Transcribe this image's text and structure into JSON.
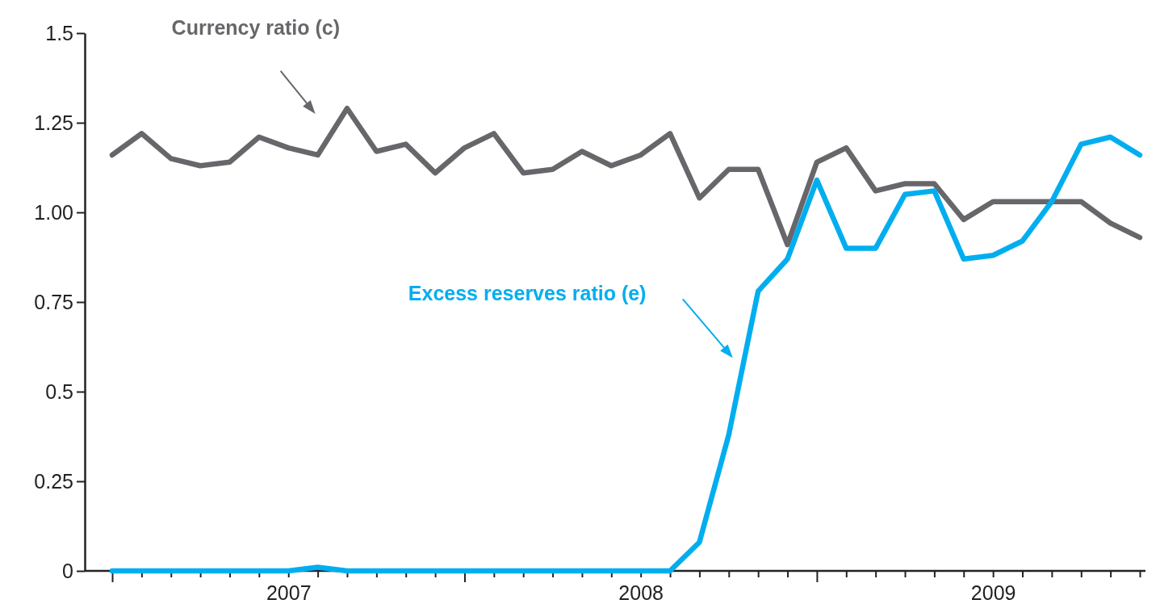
{
  "chart_data": {
    "type": "line",
    "categories": [
      null,
      null,
      null,
      null,
      null,
      null,
      "2007",
      null,
      null,
      null,
      null,
      null,
      null,
      null,
      null,
      null,
      null,
      null,
      "2008",
      null,
      null,
      null,
      null,
      null,
      null,
      null,
      null,
      null,
      null,
      null,
      "2009",
      null,
      null,
      null,
      null,
      null
    ],
    "series": [
      {
        "name": "Currency ratio (c)",
        "color": "#67676b",
        "values": [
          1.16,
          1.22,
          1.15,
          1.13,
          1.14,
          1.21,
          1.18,
          1.16,
          1.29,
          1.17,
          1.19,
          1.11,
          1.18,
          1.22,
          1.11,
          1.12,
          1.17,
          1.13,
          1.16,
          1.22,
          1.04,
          1.12,
          1.12,
          0.91,
          1.14,
          1.18,
          1.06,
          1.08,
          1.08,
          0.98,
          1.03,
          1.03,
          1.03,
          1.03,
          0.97,
          0.93
        ]
      },
      {
        "name": "Excess reserves ratio (e)",
        "color": "#00aeef",
        "values": [
          0,
          0,
          0,
          0,
          0,
          0,
          0,
          0.01,
          0,
          0,
          0,
          0,
          0,
          0,
          0,
          0,
          0,
          0,
          0,
          0,
          0.08,
          0.38,
          0.78,
          0.87,
          1.09,
          0.9,
          0.9,
          1.05,
          1.06,
          0.87,
          0.88,
          0.92,
          1.03,
          1.19,
          1.21,
          1.16
        ]
      }
    ],
    "ylim": [
      0,
      1.5
    ],
    "yticks": [
      0,
      0.25,
      0.5,
      0.75,
      {
        "value": 1,
        "label": "1.00"
      },
      1.25,
      1.5
    ],
    "grid": false,
    "legend": false,
    "marker": "none",
    "line_style": "solid"
  }
}
